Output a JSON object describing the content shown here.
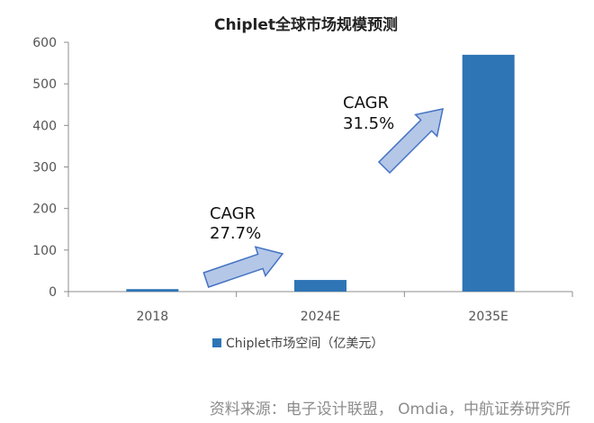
{
  "chart_data": {
    "type": "bar",
    "title": "Chiplet全球市场规模预测",
    "categories": [
      "2018",
      "2024E",
      "2035E"
    ],
    "series": [
      {
        "name": "Chiplet市场空间（亿美元）",
        "values": [
          6,
          28,
          570
        ],
        "color": "#2E75B6"
      }
    ],
    "ylim": [
      0,
      600
    ],
    "yticks": [
      "0",
      "100",
      "200",
      "300",
      "400",
      "500",
      "600"
    ],
    "grid": false,
    "legend": "bottom",
    "annotations": [
      {
        "line1": "CAGR",
        "line2": "27.7%"
      },
      {
        "line1": "CAGR",
        "line2": "31.5%"
      }
    ]
  },
  "source": "资料来源：电子设计联盟， Omdia，中航证券研究所",
  "colors": {
    "bar": "#2E75B6",
    "arrow_fill": "#B4C7E7",
    "arrow_stroke": "#4472C4"
  }
}
